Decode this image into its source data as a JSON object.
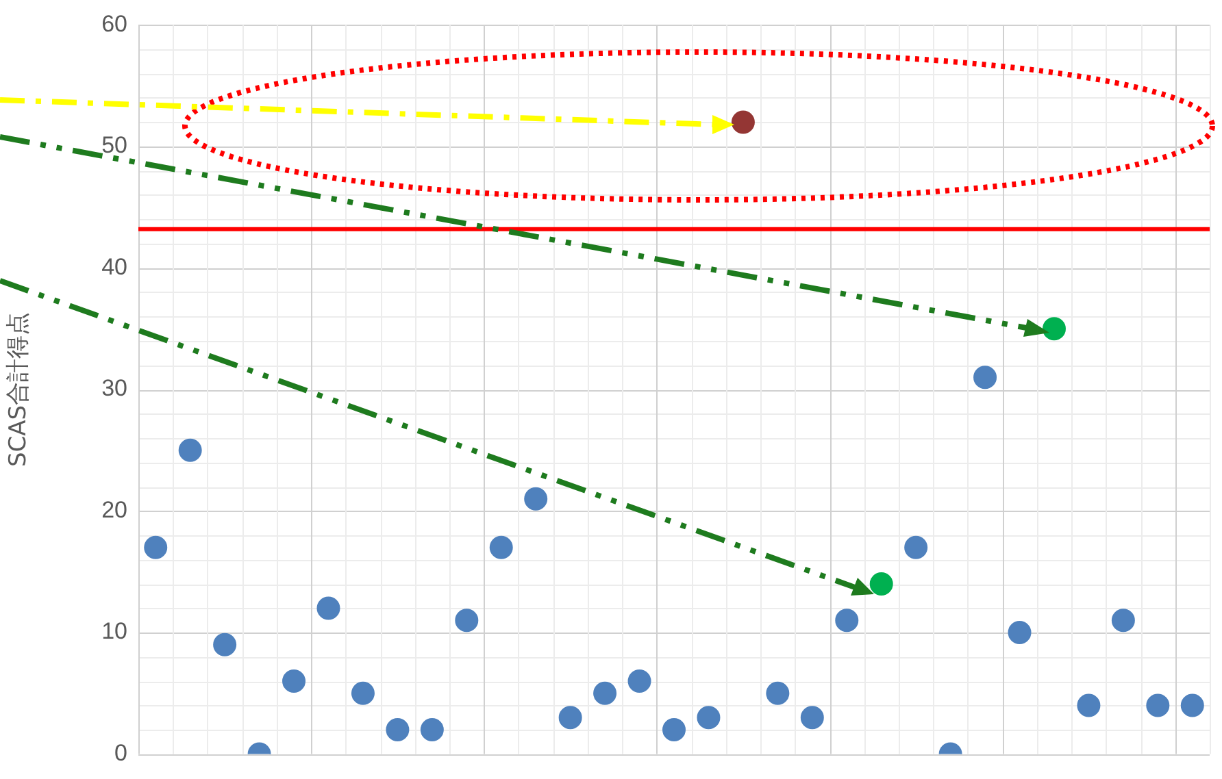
{
  "chart_data": {
    "type": "scatter",
    "ylabel": "SCAS合計得点",
    "categories": [
      null,
      null,
      null,
      null,
      null,
      null,
      null,
      null,
      null,
      null,
      null,
      null,
      null,
      null,
      null,
      null,
      null,
      null,
      null,
      null,
      null,
      null,
      null,
      null,
      null,
      null,
      null,
      null,
      null,
      null,
      null
    ],
    "series": [
      {
        "values": [
          17,
          25,
          9,
          0,
          6,
          12,
          5,
          2,
          2,
          11,
          17,
          21,
          3,
          5,
          6,
          2,
          3,
          52,
          5,
          3,
          11,
          14,
          17,
          0,
          31,
          10,
          35,
          4,
          11,
          4,
          4
        ],
        "colors": [
          "#4f81bd",
          "#4f81bd",
          "#4f81bd",
          "#4f81bd",
          "#4f81bd",
          "#4f81bd",
          "#4f81bd",
          "#4f81bd",
          "#4f81bd",
          "#4f81bd",
          "#4f81bd",
          "#4f81bd",
          "#4f81bd",
          "#4f81bd",
          "#4f81bd",
          "#4f81bd",
          "#4f81bd",
          "#943634",
          "#4f81bd",
          "#4f81bd",
          "#4f81bd",
          "#00b050",
          "#4f81bd",
          "#4f81bd",
          "#4f81bd",
          "#4f81bd",
          "#00b050",
          "#4f81bd",
          "#4f81bd",
          "#4f81bd",
          "#4f81bd"
        ]
      }
    ],
    "ylim": [
      0,
      60
    ],
    "yticks": [
      0,
      10,
      20,
      30,
      40,
      50,
      60
    ],
    "ref_lines": [
      {
        "axis": "y",
        "value": 43.2,
        "color": "#ff0000",
        "line_style": "solid"
      }
    ],
    "grid": true,
    "tick_labels": "y",
    "marker": "circle"
  }
}
